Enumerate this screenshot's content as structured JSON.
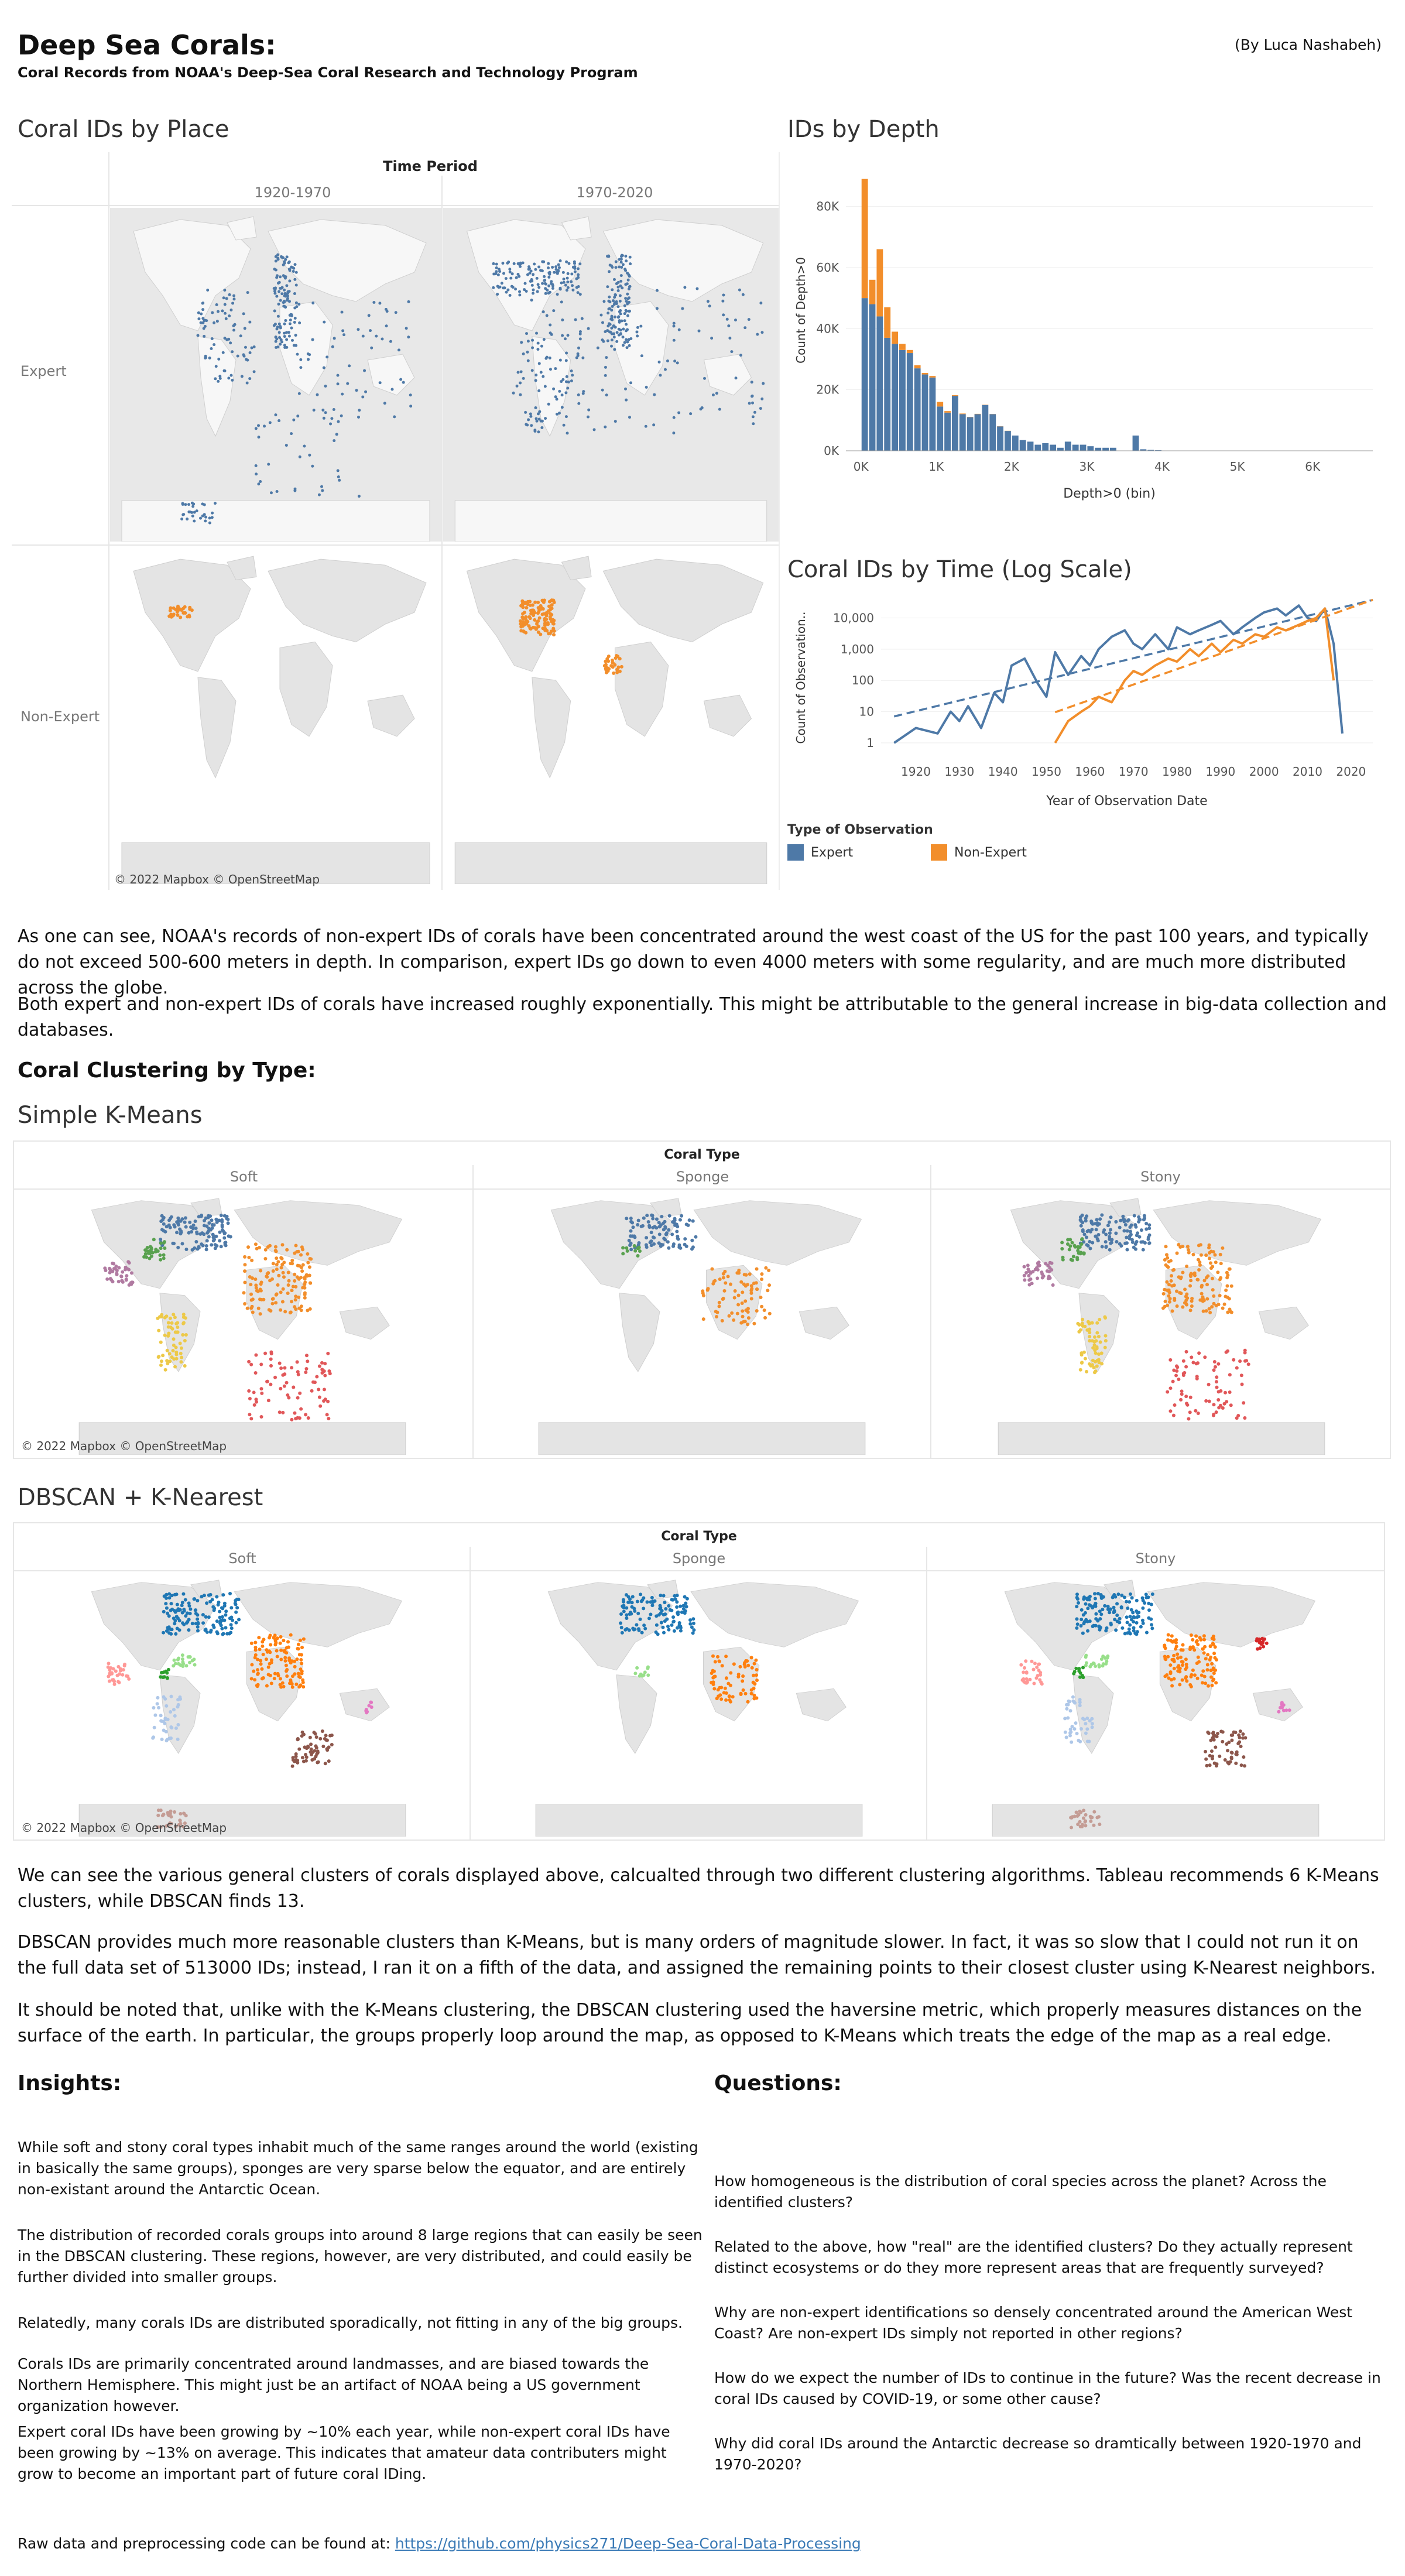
{
  "header": {
    "title": "Deep Sea Corals:",
    "subtitle": "Coral Records from NOAA's Deep-Sea Coral Research and Technology Program",
    "byline": "(By Luca Nashabeh)"
  },
  "place_view": {
    "title": "Coral IDs by Place",
    "column_header": "Time Period",
    "columns": [
      "1920-1970",
      "1970-2020"
    ],
    "rows": [
      "Expert",
      "Non-Expert"
    ],
    "attribution": "© 2022 Mapbox © OpenStreetMap"
  },
  "depth_view": {
    "title": "IDs by Depth"
  },
  "time_view": {
    "title": "Coral IDs by Time (Log Scale)",
    "legend_title": "Type of Observation",
    "legend": [
      {
        "label": "Expert",
        "color": "#4e79a7"
      },
      {
        "label": "Non-Expert",
        "color": "#f28e2b"
      }
    ]
  },
  "chart_data": [
    {
      "type": "bar",
      "title": "IDs by Depth",
      "xlabel": "Depth>0 (bin)",
      "ylabel": "Count of Depth>0",
      "x_ticks": [
        "0K",
        "1K",
        "2K",
        "3K",
        "4K",
        "5K",
        "6K"
      ],
      "y_ticks": [
        "0K",
        "20K",
        "40K",
        "60K",
        "80K"
      ],
      "ylim": [
        0,
        92000
      ],
      "xlim": [
        -200,
        6800
      ],
      "bin_width": 100,
      "x": [
        0,
        100,
        200,
        300,
        400,
        500,
        600,
        700,
        800,
        900,
        1000,
        1100,
        1200,
        1300,
        1400,
        1500,
        1600,
        1700,
        1800,
        1900,
        2000,
        2100,
        2200,
        2300,
        2400,
        2500,
        2600,
        2700,
        2800,
        2900,
        3000,
        3100,
        3200,
        3300,
        3400,
        3500,
        3600,
        3700,
        3800,
        3900,
        4000,
        4100,
        4200,
        4300
      ],
      "series": [
        {
          "name": "Expert",
          "values": [
            50000,
            48000,
            44000,
            37000,
            35000,
            33000,
            32000,
            27000,
            25000,
            24000,
            14500,
            12500,
            18000,
            12000,
            11000,
            12000,
            15000,
            12000,
            8000,
            6500,
            5000,
            3500,
            3000,
            2000,
            2500,
            2000,
            1000,
            3000,
            2000,
            2000,
            1500,
            1000,
            1000,
            1000,
            0,
            0,
            5000,
            500,
            300,
            200,
            0,
            0,
            0,
            0
          ]
        },
        {
          "name": "Non-Expert",
          "values": [
            39000,
            8000,
            22000,
            10000,
            4000,
            2000,
            1000,
            1000,
            500,
            500,
            1500,
            500,
            200,
            200,
            100,
            100,
            100,
            50,
            50,
            50,
            0,
            0,
            0,
            0,
            0,
            0,
            0,
            0,
            0,
            0,
            0,
            0,
            0,
            0,
            0,
            0,
            0,
            0,
            0,
            0,
            0,
            0,
            0,
            0
          ]
        }
      ]
    },
    {
      "type": "line",
      "title": "Coral IDs by Time (Log Scale)",
      "xlabel": "Year of Observation Date",
      "ylabel": "Count of Observation..",
      "scale": "log",
      "x_ticks": [
        "1920",
        "1930",
        "1940",
        "1950",
        "1960",
        "1970",
        "1980",
        "1990",
        "2000",
        "2010",
        "2020"
      ],
      "y_ticks": [
        "1",
        "10",
        "100",
        "1,000",
        "10,000"
      ],
      "xlim": [
        1912,
        2025
      ],
      "ylim": [
        0.5,
        30000
      ],
      "series": [
        {
          "name": "Expert",
          "x": [
            1915,
            1920,
            1925,
            1928,
            1930,
            1932,
            1935,
            1938,
            1940,
            1942,
            1945,
            1948,
            1950,
            1952,
            1955,
            1958,
            1960,
            1962,
            1965,
            1968,
            1970,
            1972,
            1975,
            1978,
            1980,
            1983,
            1985,
            1988,
            1990,
            1993,
            1995,
            1998,
            2000,
            2003,
            2005,
            2008,
            2010,
            2012,
            2014,
            2016,
            2018
          ],
          "values": [
            1,
            3,
            2,
            10,
            5,
            15,
            3,
            40,
            20,
            300,
            500,
            80,
            30,
            800,
            150,
            600,
            300,
            1000,
            2500,
            4000,
            1500,
            1000,
            3000,
            1000,
            5000,
            3000,
            4000,
            6000,
            8000,
            3000,
            5000,
            10000,
            15000,
            20000,
            12000,
            25000,
            10000,
            8000,
            20000,
            1500,
            2
          ]
        },
        {
          "name": "Non-Expert",
          "x": [
            1952,
            1955,
            1958,
            1960,
            1962,
            1965,
            1968,
            1970,
            1972,
            1975,
            1978,
            1980,
            1983,
            1985,
            1988,
            1990,
            1993,
            1995,
            1998,
            2000,
            2003,
            2005,
            2008,
            2010,
            2012,
            2014,
            2016
          ],
          "values": [
            1,
            5,
            10,
            15,
            30,
            20,
            100,
            200,
            150,
            300,
            500,
            400,
            1000,
            600,
            1500,
            800,
            2000,
            1500,
            3000,
            2500,
            5000,
            4000,
            6000,
            8000,
            10000,
            20000,
            100
          ]
        }
      ],
      "trendlines": true
    }
  ],
  "analysis_1": {
    "p1": "As one can see, NOAA's records of non-expert IDs of corals have been concentrated around the west coast of the US for the past 100 years, and typically do not exceed 500-600 meters in depth. In comparison, expert IDs go down to even 4000 meters with some regularity, and are much more distributed across the globe.",
    "p2": "Both expert and non-expert IDs of corals have increased roughly exponentially. This might be attributable to the general increase in big-data collection and databases."
  },
  "clustering": {
    "heading": "Coral Clustering by Type:",
    "kmeans_title": "Simple K-Means",
    "dbscan_title": "DBSCAN + K-Nearest",
    "column_header": "Coral Type",
    "columns": [
      "Soft",
      "Sponge",
      "Stony"
    ],
    "attribution": "© 2022 Mapbox © OpenStreetMap"
  },
  "analysis_2": {
    "p1": "We can see the various general clusters of corals displayed above, calcualted through two different clustering algorithms. Tableau recommends 6 K-Means clusters, while DBSCAN finds 13.",
    "p2": "DBSCAN provides much more reasonable clusters than K-Means, but is many orders of magnitude slower. In fact, it was so slow that I could not run it on the full data set of 513000 IDs; instead, I ran it on a fifth of the data, and assigned the remaining points to their closest cluster using K-Nearest neighbors.",
    "p3": "It should be noted that, unlike with the K-Means clustering, the DBSCAN clustering used the haversine metric, which properly measures distances on the surface of the earth. In particular, the groups properly loop around the map, as opposed to K-Means which treats the edge of the map as a real edge."
  },
  "insights": {
    "heading": "Insights:",
    "items": [
      "While soft and stony coral types inhabit much of the same ranges around the world (existing in basically the same groups), sponges are very sparse below the equator, and are entirely non-existant around the Antarctic Ocean.",
      "The distribution of recorded corals groups into around 8 large regions that can easily be seen in the DBSCAN clustering. These regions, however, are very distributed, and could easily be further divided into smaller groups.",
      "Relatedly, many corals IDs are distributed sporadically, not fitting in any of the big groups.",
      "Corals IDs are primarily concentrated around landmasses, and are biased towards the Northern Hemisphere. This might just be an artifact of NOAA being a US government organization however.",
      "Expert coral IDs have been growing by ~10% each year, while non-expert coral IDs have been growing by ~13% on average. This indicates that amateur data contributers might grow to become an important part of future coral IDing."
    ]
  },
  "questions": {
    "heading": "Questions:",
    "items": [
      "How homogeneous is the distribution of coral species across the planet? Across the identified clusters?",
      "Related to the above, how \"real\" are the identified clusters? Do they actually represent distinct ecosystems or do they more represent areas that are frequently surveyed?",
      "Why are non-expert identifications so densely concentrated around the American West Coast? Are non-expert IDs simply not reported in other regions?",
      "How do we expect the number of IDs to continue in the future? Was the recent decrease in coral IDs caused by COVID-19, or some other cause?",
      "Why did coral IDs around the Antarctic decrease so dramtically between 1920-1970 and 1970-2020?"
    ]
  },
  "footer": {
    "text": "Raw data and preprocessing code can be found at:",
    "link": "https://github.com/physics271/Deep-Sea-Coral-Data-Processing"
  }
}
